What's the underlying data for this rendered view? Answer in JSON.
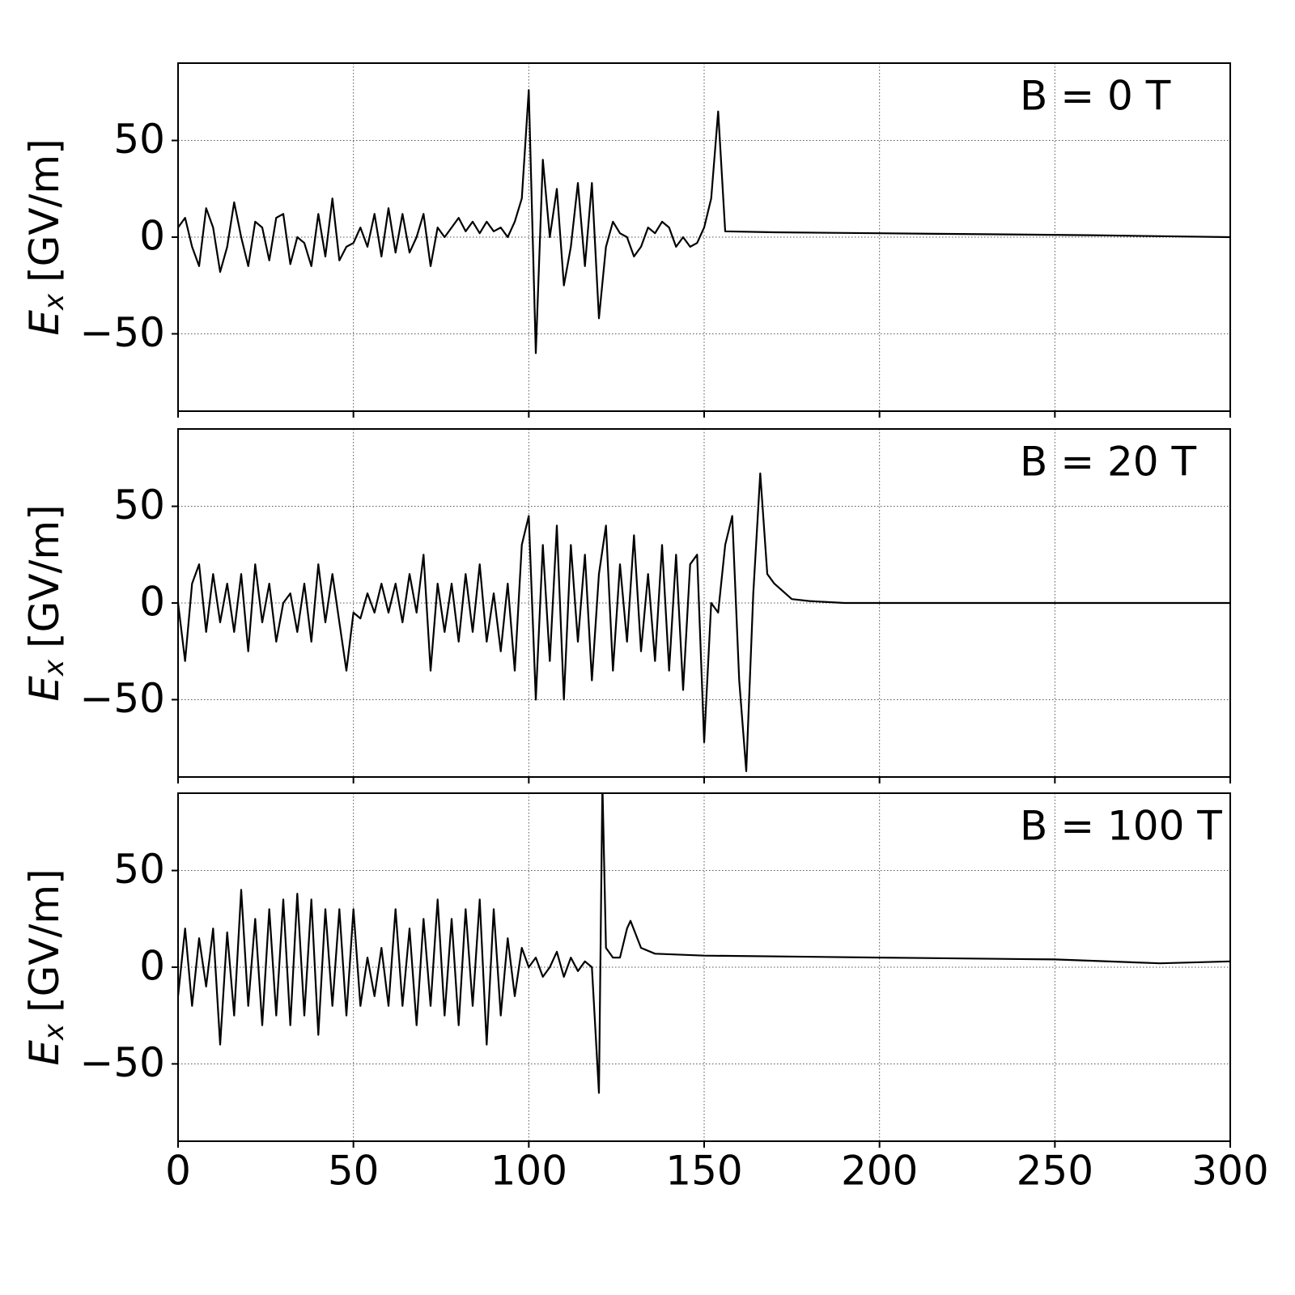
{
  "chart_data": [
    {
      "type": "line",
      "annotation": "B = 0 T",
      "ylabel": "E",
      "ylabel_sub": "x",
      "ylabel_unit": "[GV/m]",
      "xlim": [
        0,
        300
      ],
      "ylim": [
        -90,
        90
      ],
      "grid": true,
      "color": "#000000",
      "xticks": [
        0,
        50,
        100,
        150,
        200,
        250,
        300
      ],
      "yticks": [
        {
          "value": -50,
          "label": "−50"
        },
        0,
        50
      ],
      "x": [
        0,
        2,
        4,
        6,
        8,
        10,
        12,
        14,
        16,
        18,
        20,
        22,
        24,
        26,
        28,
        30,
        32,
        34,
        36,
        38,
        40,
        42,
        44,
        46,
        48,
        50,
        52,
        54,
        56,
        58,
        60,
        62,
        64,
        66,
        68,
        70,
        72,
        74,
        76,
        78,
        80,
        82,
        84,
        86,
        88,
        90,
        92,
        94,
        96,
        98,
        100,
        102,
        104,
        106,
        108,
        110,
        112,
        114,
        116,
        118,
        120,
        122,
        124,
        126,
        128,
        130,
        132,
        134,
        136,
        138,
        140,
        142,
        144,
        146,
        148,
        150,
        152,
        154,
        156,
        170,
        200,
        230,
        260,
        280,
        300
      ],
      "values": [
        5,
        10,
        -5,
        -15,
        15,
        5,
        -18,
        -5,
        18,
        0,
        -15,
        8,
        5,
        -12,
        10,
        12,
        -14,
        0,
        -3,
        -15,
        12,
        -10,
        20,
        -12,
        -5,
        -3,
        5,
        -5,
        12,
        -10,
        15,
        -8,
        12,
        -8,
        0,
        12,
        -15,
        5,
        0,
        5,
        10,
        3,
        8,
        2,
        8,
        3,
        5,
        0,
        8,
        20,
        76,
        -60,
        40,
        0,
        25,
        -25,
        -5,
        28,
        -15,
        28,
        -42,
        -5,
        8,
        2,
        0,
        -10,
        -5,
        5,
        2,
        8,
        5,
        -5,
        0,
        -5,
        -3,
        5,
        20,
        65,
        3,
        2.5,
        2,
        1.5,
        1,
        0.5,
        0
      ]
    },
    {
      "type": "line",
      "annotation": "B = 20 T",
      "ylabel": "E",
      "ylabel_sub": "x",
      "ylabel_unit": "[GV/m]",
      "xlim": [
        0,
        300
      ],
      "ylim": [
        -90,
        90
      ],
      "grid": true,
      "color": "#000000",
      "xticks": [
        0,
        50,
        100,
        150,
        200,
        250,
        300
      ],
      "yticks": [
        {
          "value": -50,
          "label": "−50"
        },
        0,
        50
      ],
      "x": [
        0,
        2,
        4,
        6,
        8,
        10,
        12,
        14,
        16,
        18,
        20,
        22,
        24,
        26,
        28,
        30,
        32,
        34,
        36,
        38,
        40,
        42,
        44,
        46,
        48,
        50,
        52,
        54,
        56,
        58,
        60,
        62,
        64,
        66,
        68,
        70,
        72,
        74,
        76,
        78,
        80,
        82,
        84,
        86,
        88,
        90,
        92,
        94,
        96,
        98,
        100,
        102,
        104,
        106,
        108,
        110,
        112,
        114,
        116,
        118,
        120,
        122,
        124,
        126,
        128,
        130,
        132,
        134,
        136,
        138,
        140,
        142,
        144,
        146,
        148,
        150,
        152,
        154,
        156,
        158,
        160,
        162,
        164,
        166,
        168,
        170,
        175,
        180,
        190,
        220,
        260,
        300
      ],
      "values": [
        0,
        -30,
        10,
        20,
        -15,
        15,
        -10,
        10,
        -15,
        15,
        -25,
        20,
        -10,
        10,
        -20,
        0,
        5,
        -15,
        10,
        -20,
        20,
        -10,
        15,
        -10,
        -35,
        -5,
        -8,
        5,
        -5,
        10,
        -5,
        10,
        -10,
        15,
        -5,
        25,
        -35,
        10,
        -15,
        10,
        -20,
        15,
        -15,
        20,
        -20,
        5,
        -25,
        10,
        -35,
        30,
        45,
        -50,
        30,
        -30,
        40,
        -50,
        30,
        -20,
        25,
        -40,
        15,
        40,
        -35,
        20,
        -20,
        35,
        -25,
        15,
        -30,
        30,
        -35,
        25,
        -45,
        20,
        25,
        -72,
        0,
        -5,
        30,
        45,
        -40,
        -87,
        5,
        67,
        15,
        10,
        2,
        1,
        0,
        0,
        0,
        0
      ]
    },
    {
      "type": "line",
      "annotation": "B = 100 T",
      "ylabel": "E",
      "ylabel_sub": "x",
      "ylabel_unit": "[GV/m]",
      "xlim": [
        0,
        300
      ],
      "ylim": [
        -90,
        90
      ],
      "grid": true,
      "color": "#000000",
      "xticks": [
        0,
        50,
        100,
        150,
        200,
        250,
        300
      ],
      "yticks": [
        {
          "value": -50,
          "label": "−50"
        },
        0,
        50
      ],
      "x": [
        0,
        2,
        4,
        6,
        8,
        10,
        12,
        14,
        16,
        18,
        20,
        22,
        24,
        26,
        28,
        30,
        32,
        34,
        36,
        38,
        40,
        42,
        44,
        46,
        48,
        50,
        52,
        54,
        56,
        58,
        60,
        62,
        64,
        66,
        68,
        70,
        72,
        74,
        76,
        78,
        80,
        82,
        84,
        86,
        88,
        90,
        92,
        94,
        96,
        98,
        100,
        102,
        104,
        106,
        108,
        110,
        112,
        114,
        116,
        118,
        120,
        121,
        122,
        124,
        126,
        128,
        129,
        132,
        136,
        150,
        200,
        250,
        280,
        300
      ],
      "values": [
        -15,
        20,
        -20,
        15,
        -10,
        20,
        -40,
        18,
        -25,
        40,
        -20,
        25,
        -30,
        30,
        -25,
        35,
        -30,
        38,
        -25,
        35,
        -35,
        30,
        -20,
        30,
        -25,
        30,
        -20,
        5,
        -15,
        10,
        -20,
        30,
        -20,
        20,
        -30,
        25,
        -20,
        35,
        -25,
        25,
        -30,
        30,
        -20,
        35,
        -40,
        30,
        -25,
        15,
        -15,
        10,
        0,
        5,
        -5,
        0,
        8,
        -5,
        5,
        -2,
        3,
        0,
        -65,
        95,
        10,
        5,
        5,
        20,
        24,
        10,
        7,
        6,
        5,
        4,
        2,
        3
      ]
    }
  ]
}
